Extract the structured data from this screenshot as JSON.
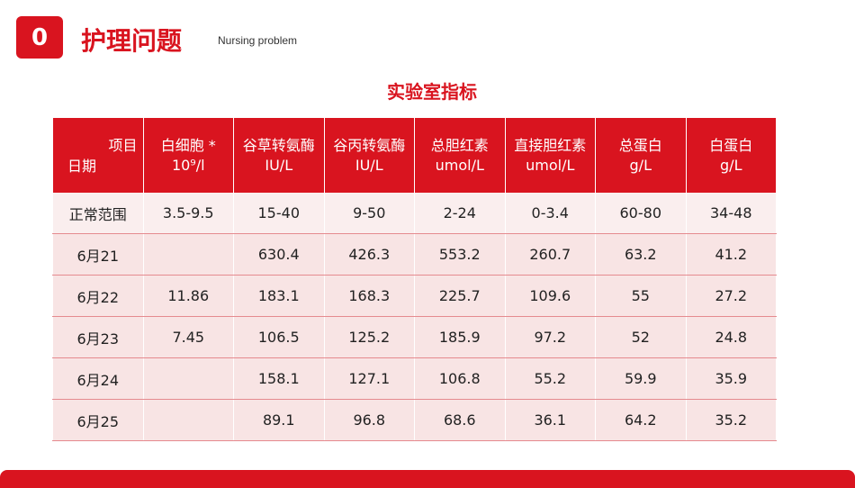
{
  "header": {
    "badge": "0",
    "title": "护理问题",
    "subtitle": "Nursing problem"
  },
  "table": {
    "title": "实验室指标",
    "corner": {
      "top": "项目",
      "bottom": "日期"
    },
    "columns": [
      [
        "白细胞 *",
        "10⁹/l"
      ],
      [
        "谷草转氨酶",
        "IU/L"
      ],
      [
        "谷丙转氨酶",
        "IU/L"
      ],
      [
        "总胆红素",
        "umol/L"
      ],
      [
        "直接胆红素",
        "umol/L"
      ],
      [
        "总蛋白",
        "g/L"
      ],
      [
        "白蛋白",
        "g/L"
      ]
    ],
    "rows": [
      [
        "正常范围",
        "3.5-9.5",
        "15-40",
        "9-50",
        "2-24",
        "0-3.4",
        "60-80",
        "34-48"
      ],
      [
        "6月21",
        null,
        "630.4",
        "426.3",
        "553.2",
        "260.7",
        "63.2",
        "41.2"
      ],
      [
        "6月22",
        "11.86",
        "183.1",
        "168.3",
        "225.7",
        "109.6",
        "55",
        "27.2"
      ],
      [
        "6月23",
        "7.45",
        "106.5",
        "125.2",
        "185.9",
        "97.2",
        "52",
        "24.8"
      ],
      [
        "6月24",
        null,
        "158.1",
        "127.1",
        "106.8",
        "55.2",
        "59.9",
        "35.9"
      ],
      [
        "6月25",
        null,
        "89.1",
        "96.8",
        "68.6",
        "36.1",
        "64.2",
        "35.2"
      ]
    ]
  }
}
